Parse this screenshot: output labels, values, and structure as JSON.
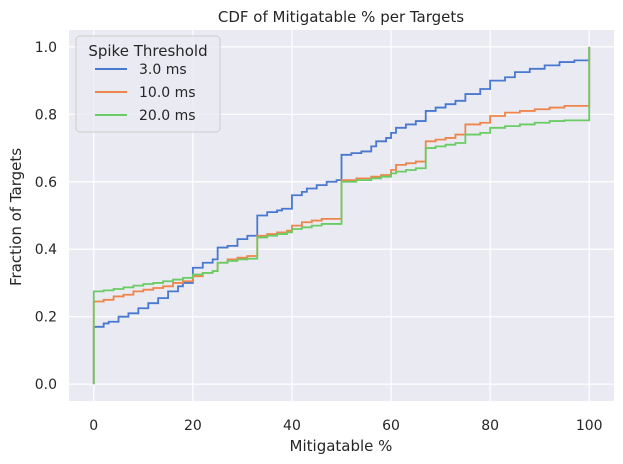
{
  "chart_data": {
    "type": "line",
    "step": true,
    "title": "CDF of Mitigatable % per Targets",
    "xlabel": "Mitigatable %",
    "ylabel": "Fraction of Targets",
    "xlim": [
      -5,
      105
    ],
    "ylim": [
      -0.05,
      1.05
    ],
    "xticks": [
      0,
      20,
      40,
      60,
      80,
      100
    ],
    "yticks": [
      0.0,
      0.2,
      0.4,
      0.6,
      0.8,
      1.0
    ],
    "xtick_labels": [
      "0",
      "20",
      "40",
      "60",
      "80",
      "100"
    ],
    "ytick_labels": [
      "0.0",
      "0.2",
      "0.4",
      "0.6",
      "0.8",
      "1.0"
    ],
    "grid": true,
    "legend": {
      "title": "Spike Threshold",
      "placement": "top-left"
    },
    "series": [
      {
        "name": "3.0 ms",
        "color": "#4878d0",
        "points": [
          [
            0,
            0.0
          ],
          [
            0,
            0.17
          ],
          [
            2,
            0.18
          ],
          [
            3,
            0.185
          ],
          [
            5,
            0.2
          ],
          [
            7,
            0.21
          ],
          [
            9,
            0.225
          ],
          [
            11,
            0.24
          ],
          [
            13,
            0.255
          ],
          [
            15,
            0.275
          ],
          [
            17,
            0.29
          ],
          [
            18,
            0.3
          ],
          [
            20,
            0.33
          ],
          [
            20,
            0.345
          ],
          [
            22,
            0.36
          ],
          [
            24,
            0.37
          ],
          [
            25,
            0.405
          ],
          [
            27,
            0.41
          ],
          [
            29,
            0.425
          ],
          [
            29,
            0.43
          ],
          [
            31,
            0.44
          ],
          [
            33,
            0.45
          ],
          [
            33,
            0.5
          ],
          [
            35,
            0.51
          ],
          [
            37,
            0.515
          ],
          [
            38,
            0.52
          ],
          [
            40,
            0.545
          ],
          [
            40,
            0.56
          ],
          [
            42,
            0.57
          ],
          [
            43,
            0.58
          ],
          [
            45,
            0.59
          ],
          [
            47,
            0.6
          ],
          [
            49,
            0.605
          ],
          [
            50,
            0.61
          ],
          [
            50,
            0.68
          ],
          [
            52,
            0.685
          ],
          [
            54,
            0.69
          ],
          [
            56,
            0.705
          ],
          [
            57,
            0.72
          ],
          [
            59,
            0.73
          ],
          [
            60,
            0.745
          ],
          [
            61,
            0.76
          ],
          [
            63,
            0.77
          ],
          [
            65,
            0.78
          ],
          [
            67,
            0.78
          ],
          [
            67,
            0.81
          ],
          [
            69,
            0.82
          ],
          [
            71,
            0.83
          ],
          [
            73,
            0.84
          ],
          [
            75,
            0.85
          ],
          [
            75,
            0.86
          ],
          [
            78,
            0.875
          ],
          [
            80,
            0.885
          ],
          [
            80,
            0.9
          ],
          [
            83,
            0.91
          ],
          [
            85,
            0.925
          ],
          [
            88,
            0.935
          ],
          [
            91,
            0.945
          ],
          [
            94,
            0.955
          ],
          [
            97,
            0.96
          ],
          [
            100,
            0.96
          ],
          [
            100,
            1.0
          ]
        ]
      },
      {
        "name": "10.0 ms",
        "color": "#ee854a",
        "points": [
          [
            0,
            0.0
          ],
          [
            0,
            0.245
          ],
          [
            2,
            0.25
          ],
          [
            4,
            0.26
          ],
          [
            6,
            0.265
          ],
          [
            8,
            0.275
          ],
          [
            10,
            0.28
          ],
          [
            12,
            0.285
          ],
          [
            14,
            0.29
          ],
          [
            16,
            0.3
          ],
          [
            18,
            0.305
          ],
          [
            20,
            0.32
          ],
          [
            22,
            0.33
          ],
          [
            24,
            0.335
          ],
          [
            25,
            0.36
          ],
          [
            27,
            0.37
          ],
          [
            29,
            0.375
          ],
          [
            31,
            0.38
          ],
          [
            33,
            0.385
          ],
          [
            33,
            0.44
          ],
          [
            35,
            0.445
          ],
          [
            37,
            0.45
          ],
          [
            39,
            0.455
          ],
          [
            40,
            0.47
          ],
          [
            42,
            0.48
          ],
          [
            44,
            0.485
          ],
          [
            46,
            0.49
          ],
          [
            50,
            0.49
          ],
          [
            50,
            0.605
          ],
          [
            53,
            0.61
          ],
          [
            56,
            0.615
          ],
          [
            58,
            0.62
          ],
          [
            60,
            0.635
          ],
          [
            61,
            0.65
          ],
          [
            63,
            0.655
          ],
          [
            65,
            0.66
          ],
          [
            67,
            0.66
          ],
          [
            67,
            0.72
          ],
          [
            69,
            0.725
          ],
          [
            71,
            0.73
          ],
          [
            73,
            0.74
          ],
          [
            75,
            0.745
          ],
          [
            75,
            0.77
          ],
          [
            78,
            0.775
          ],
          [
            80,
            0.785
          ],
          [
            80,
            0.795
          ],
          [
            83,
            0.805
          ],
          [
            86,
            0.81
          ],
          [
            89,
            0.815
          ],
          [
            92,
            0.82
          ],
          [
            95,
            0.825
          ],
          [
            100,
            0.825
          ],
          [
            100,
            1.0
          ]
        ]
      },
      {
        "name": "20.0 ms",
        "color": "#6acc64",
        "points": [
          [
            0,
            0.0
          ],
          [
            0,
            0.275
          ],
          [
            2,
            0.278
          ],
          [
            4,
            0.282
          ],
          [
            6,
            0.287
          ],
          [
            8,
            0.292
          ],
          [
            10,
            0.297
          ],
          [
            12,
            0.3
          ],
          [
            14,
            0.305
          ],
          [
            16,
            0.31
          ],
          [
            18,
            0.315
          ],
          [
            20,
            0.325
          ],
          [
            22,
            0.33
          ],
          [
            24,
            0.335
          ],
          [
            25,
            0.36
          ],
          [
            27,
            0.365
          ],
          [
            29,
            0.37
          ],
          [
            31,
            0.372
          ],
          [
            33,
            0.375
          ],
          [
            33,
            0.435
          ],
          [
            35,
            0.44
          ],
          [
            37,
            0.445
          ],
          [
            39,
            0.45
          ],
          [
            40,
            0.46
          ],
          [
            42,
            0.465
          ],
          [
            44,
            0.47
          ],
          [
            46,
            0.475
          ],
          [
            50,
            0.475
          ],
          [
            50,
            0.6
          ],
          [
            53,
            0.605
          ],
          [
            56,
            0.61
          ],
          [
            58,
            0.615
          ],
          [
            60,
            0.625
          ],
          [
            61,
            0.63
          ],
          [
            63,
            0.635
          ],
          [
            65,
            0.64
          ],
          [
            67,
            0.64
          ],
          [
            67,
            0.7
          ],
          [
            69,
            0.705
          ],
          [
            71,
            0.71
          ],
          [
            73,
            0.715
          ],
          [
            75,
            0.72
          ],
          [
            75,
            0.74
          ],
          [
            78,
            0.745
          ],
          [
            80,
            0.755
          ],
          [
            80,
            0.76
          ],
          [
            83,
            0.765
          ],
          [
            86,
            0.77
          ],
          [
            89,
            0.775
          ],
          [
            92,
            0.78
          ],
          [
            95,
            0.782
          ],
          [
            100,
            0.785
          ],
          [
            100,
            1.0
          ]
        ]
      }
    ]
  }
}
